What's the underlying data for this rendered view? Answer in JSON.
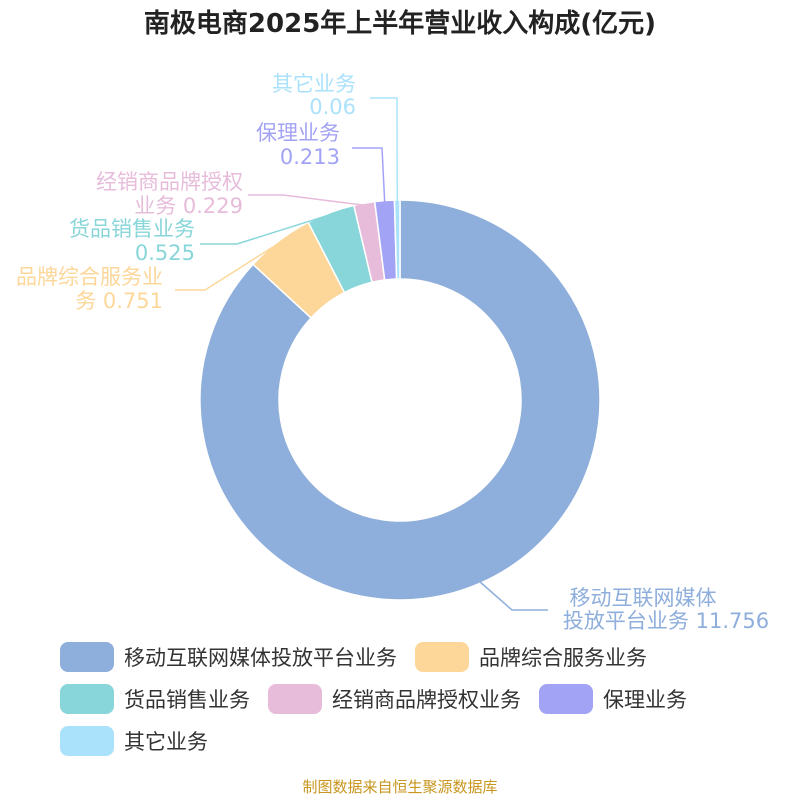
{
  "chart_data": {
    "type": "pie",
    "title": "南极电商2025年上半年营业收入构成(亿元)",
    "donut": true,
    "slices": [
      {
        "name": "移动互联网媒体投放平台业务",
        "value": 11.756,
        "color": "#8eaedb",
        "label_lines": [
          "移动互联网媒体",
          "投放平台业务 11.756"
        ]
      },
      {
        "name": "品牌综合服务业务",
        "value": 0.751,
        "color": "#fdd79a",
        "label_lines": [
          "品牌综合服务业",
          "务 0.751"
        ]
      },
      {
        "name": "货品销售业务",
        "value": 0.525,
        "color": "#88d6d9",
        "label_lines": [
          "货品销售业务",
          "0.525"
        ]
      },
      {
        "name": "经销商品牌授权业务",
        "value": 0.229,
        "color": "#e7bcdb",
        "label_lines": [
          "经销商品牌授权",
          "业务 0.229"
        ]
      },
      {
        "name": "保理业务",
        "value": 0.213,
        "color": "#a3a3f5",
        "label_lines": [
          "保理业务",
          "0.213"
        ]
      },
      {
        "name": "其它业务",
        "value": 0.06,
        "color": "#abe2fb",
        "label_lines": [
          "其它业务",
          "0.06"
        ]
      }
    ],
    "legend_position": "bottom"
  },
  "source": "制图数据来自恒生聚源数据库"
}
